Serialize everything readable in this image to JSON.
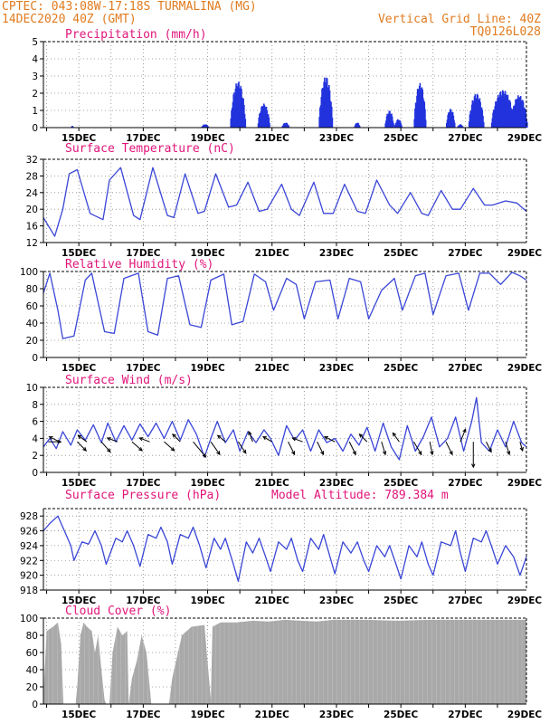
{
  "header": {
    "station": "CPTEC:  043:08W-17:18S  TURMALINA (MG)",
    "run": "14DEC2020 40Z (GMT)",
    "grid_note": "Vertical Grid Line: 40Z",
    "code": "TQ0126L028"
  },
  "colors": {
    "line": "#3a46d6",
    "bar": "#2233dd",
    "cloud": "#a9a9a9",
    "title": "#e0157a",
    "header": "#e07b1f"
  },
  "x_labels": [
    "15DEC",
    "17DEC",
    "19DEC",
    "21DEC",
    "23DEC",
    "25DEC",
    "27DEC",
    "29DEC"
  ],
  "chart_data": [
    {
      "type": "bar",
      "title": "Precipitation (mm/h)",
      "ylim": [
        0,
        5
      ],
      "yticks": [
        0,
        1,
        2,
        3,
        4,
        5
      ],
      "x_range_days": [
        14.0,
        29.0
      ],
      "events": [
        {
          "start": 14.85,
          "end": 14.9,
          "peak": 0.1
        },
        {
          "start": 18.9,
          "end": 19.1,
          "peak": 0.2
        },
        {
          "start": 19.8,
          "end": 20.25,
          "peak": 2.7
        },
        {
          "start": 20.65,
          "end": 21.0,
          "peak": 1.4
        },
        {
          "start": 21.4,
          "end": 21.6,
          "peak": 0.3
        },
        {
          "start": 22.55,
          "end": 22.95,
          "peak": 3.0
        },
        {
          "start": 23.65,
          "end": 23.8,
          "peak": 0.3
        },
        {
          "start": 24.6,
          "end": 24.85,
          "peak": 1.0
        },
        {
          "start": 24.9,
          "end": 25.1,
          "peak": 0.5
        },
        {
          "start": 25.5,
          "end": 25.85,
          "peak": 2.6
        },
        {
          "start": 26.5,
          "end": 26.75,
          "peak": 1.1
        },
        {
          "start": 26.85,
          "end": 27.0,
          "peak": 0.2
        },
        {
          "start": 27.2,
          "end": 27.65,
          "peak": 2.0
        },
        {
          "start": 27.9,
          "end": 28.6,
          "peak": 2.2
        },
        {
          "start": 28.5,
          "end": 29.0,
          "peak": 1.9
        }
      ]
    },
    {
      "type": "line",
      "title": "Surface Temperature (nC)",
      "ylim": [
        12,
        32
      ],
      "yticks": [
        12,
        16,
        20,
        24,
        28,
        32
      ],
      "x": [
        14.0,
        14.35,
        14.6,
        14.8,
        15.05,
        15.45,
        15.85,
        16.05,
        16.4,
        16.8,
        17.0,
        17.4,
        17.85,
        18.05,
        18.4,
        18.8,
        19.0,
        19.35,
        19.75,
        20.0,
        20.35,
        20.7,
        20.95,
        21.4,
        21.7,
        21.95,
        22.4,
        22.7,
        23.0,
        23.35,
        23.75,
        24.0,
        24.35,
        24.75,
        25.0,
        25.4,
        25.75,
        25.95,
        26.35,
        26.7,
        26.95,
        27.35,
        27.7,
        27.95,
        28.35,
        28.7,
        29.0
      ],
      "y": [
        18.0,
        13.5,
        20.0,
        28.5,
        29.5,
        19.0,
        17.5,
        27.0,
        30.0,
        18.5,
        17.5,
        30.0,
        18.5,
        18.0,
        28.5,
        19.0,
        19.5,
        28.5,
        20.5,
        21.0,
        26.5,
        19.5,
        20.0,
        26.0,
        20.0,
        18.5,
        26.5,
        19.0,
        19.0,
        26.0,
        19.5,
        19.0,
        27.0,
        21.0,
        19.0,
        24.0,
        19.0,
        18.5,
        24.5,
        20.0,
        20.0,
        25.0,
        21.0,
        21.0,
        22.0,
        21.5,
        19.5
      ]
    },
    {
      "type": "line",
      "title": "Relative Humidity (%)",
      "ylim": [
        0,
        100
      ],
      "yticks": [
        0,
        20,
        40,
        60,
        80,
        100
      ],
      "x": [
        14.0,
        14.2,
        14.45,
        14.6,
        14.95,
        15.3,
        15.5,
        15.9,
        16.2,
        16.5,
        16.95,
        17.25,
        17.55,
        17.85,
        18.2,
        18.55,
        18.9,
        19.2,
        19.6,
        19.85,
        20.2,
        20.55,
        20.9,
        21.15,
        21.55,
        21.85,
        22.1,
        22.45,
        22.9,
        23.15,
        23.5,
        23.85,
        24.1,
        24.5,
        24.9,
        25.15,
        25.55,
        25.85,
        26.1,
        26.5,
        26.9,
        27.2,
        27.55,
        27.85,
        28.2,
        28.55,
        28.8,
        29.0
      ],
      "y": [
        75.0,
        98.0,
        55.0,
        22.0,
        25.0,
        90.0,
        98.0,
        30.0,
        28.0,
        92.0,
        98.0,
        30.0,
        26.0,
        92.0,
        95.0,
        38.0,
        35.0,
        90.0,
        97.0,
        38.0,
        42.0,
        97.0,
        88.0,
        55.0,
        92.0,
        85.0,
        45.0,
        88.0,
        90.0,
        45.0,
        92.0,
        88.0,
        45.0,
        78.0,
        92.0,
        55.0,
        95.0,
        98.0,
        50.0,
        95.0,
        98.0,
        55.0,
        98.0,
        98.0,
        85.0,
        99.0,
        95.0,
        90.0
      ]
    },
    {
      "type": "line",
      "title": "Surface Wind (m/s)",
      "ylim": [
        0,
        10
      ],
      "yticks": [
        0,
        2,
        4,
        6,
        8,
        10
      ],
      "x": [
        14.0,
        14.2,
        14.4,
        14.6,
        14.85,
        15.05,
        15.3,
        15.55,
        15.8,
        16.0,
        16.25,
        16.5,
        16.75,
        17.0,
        17.25,
        17.5,
        17.75,
        18.0,
        18.25,
        18.5,
        18.75,
        19.0,
        19.2,
        19.4,
        19.65,
        19.9,
        20.1,
        20.35,
        20.6,
        20.85,
        21.05,
        21.3,
        21.55,
        21.8,
        22.05,
        22.3,
        22.55,
        22.8,
        23.05,
        23.3,
        23.55,
        23.8,
        24.05,
        24.3,
        24.55,
        24.8,
        25.05,
        25.3,
        25.55,
        25.8,
        26.05,
        26.3,
        26.55,
        26.8,
        27.05,
        27.3,
        27.45,
        27.6,
        27.85,
        28.1,
        28.35,
        28.6,
        28.85,
        29.0
      ],
      "y": [
        3.0,
        4.0,
        2.8,
        4.8,
        3.2,
        5.0,
        3.8,
        5.6,
        3.5,
        5.8,
        3.6,
        5.5,
        3.8,
        5.7,
        4.2,
        5.8,
        4.0,
        6.0,
        3.8,
        6.2,
        4.5,
        1.8,
        4.0,
        6.0,
        3.5,
        5.0,
        2.5,
        4.8,
        3.5,
        5.0,
        4.0,
        2.0,
        5.5,
        3.8,
        5.0,
        2.5,
        5.0,
        3.5,
        4.0,
        2.5,
        4.5,
        3.2,
        5.3,
        2.5,
        5.8,
        3.0,
        1.5,
        5.5,
        2.5,
        4.2,
        6.5,
        3.0,
        4.0,
        6.5,
        2.5,
        6.0,
        8.8,
        3.5,
        2.5,
        5.0,
        3.0,
        6.0,
        3.5,
        3.0
      ],
      "vectors": [
        {
          "day": 14.15,
          "u": 1.0,
          "v": 0.0
        },
        {
          "day": 14.5,
          "u": -0.8,
          "v": 0.4
        },
        {
          "day": 15.05,
          "u": 0.7,
          "v": -0.7
        },
        {
          "day": 15.35,
          "u": -0.7,
          "v": 0.5
        },
        {
          "day": 15.8,
          "u": 0.7,
          "v": -0.8
        },
        {
          "day": 16.3,
          "u": -0.8,
          "v": 0.3
        },
        {
          "day": 16.75,
          "u": 0.8,
          "v": -0.7
        },
        {
          "day": 17.3,
          "u": -0.8,
          "v": 0.3
        },
        {
          "day": 17.75,
          "u": 0.8,
          "v": -0.7
        },
        {
          "day": 18.25,
          "u": -0.6,
          "v": 0.6
        },
        {
          "day": 18.65,
          "u": 1.0,
          "v": -1.2
        },
        {
          "day": 19.2,
          "u": 0.7,
          "v": -1.0
        },
        {
          "day": 19.65,
          "u": -0.6,
          "v": 0.5
        },
        {
          "day": 20.05,
          "u": 0.6,
          "v": -0.9
        },
        {
          "day": 20.5,
          "u": -0.3,
          "v": 0.8
        },
        {
          "day": 21.1,
          "u": -0.7,
          "v": 0.4
        },
        {
          "day": 21.6,
          "u": 0.5,
          "v": -1.0
        },
        {
          "day": 22.05,
          "u": -0.8,
          "v": 0.3
        },
        {
          "day": 22.5,
          "u": 0.5,
          "v": -1.0
        },
        {
          "day": 23.05,
          "u": -0.8,
          "v": 0.4
        },
        {
          "day": 23.5,
          "u": 0.5,
          "v": -1.0
        },
        {
          "day": 24.05,
          "u": -0.6,
          "v": 0.6
        },
        {
          "day": 24.5,
          "u": 0.3,
          "v": -1.0
        },
        {
          "day": 25.05,
          "u": -0.5,
          "v": 0.7
        },
        {
          "day": 25.5,
          "u": 0.6,
          "v": -1.0
        },
        {
          "day": 26.0,
          "u": 0.2,
          "v": -1.0
        },
        {
          "day": 26.5,
          "u": 0.5,
          "v": -1.0
        },
        {
          "day": 26.95,
          "u": 0.4,
          "v": 1.0
        },
        {
          "day": 27.35,
          "u": 0.0,
          "v": -2.0
        },
        {
          "day": 27.75,
          "u": 0.4,
          "v": -0.8
        },
        {
          "day": 28.35,
          "u": 0.3,
          "v": -1.0
        },
        {
          "day": 28.8,
          "u": 0.2,
          "v": -0.7
        }
      ]
    },
    {
      "type": "line",
      "title": "Surface Pressure (hPa)",
      "annotation": "Model Altitude: 789.384 m",
      "ylim": [
        918,
        929
      ],
      "yticks": [
        918,
        920,
        922,
        924,
        926,
        928
      ],
      "x": [
        14.0,
        14.2,
        14.45,
        14.6,
        14.85,
        14.95,
        15.2,
        15.4,
        15.6,
        15.8,
        15.95,
        16.25,
        16.45,
        16.6,
        16.8,
        17.0,
        17.25,
        17.5,
        17.65,
        17.85,
        18.0,
        18.25,
        18.5,
        18.65,
        18.85,
        19.05,
        19.3,
        19.5,
        19.65,
        19.9,
        20.05,
        20.3,
        20.5,
        20.7,
        20.9,
        21.05,
        21.3,
        21.55,
        21.7,
        21.9,
        22.05,
        22.3,
        22.55,
        22.7,
        22.9,
        23.05,
        23.3,
        23.55,
        23.75,
        23.95,
        24.1,
        24.35,
        24.6,
        24.75,
        24.95,
        25.1,
        25.35,
        25.6,
        25.75,
        25.95,
        26.1,
        26.35,
        26.65,
        26.8,
        26.95,
        27.1,
        27.35,
        27.6,
        27.75,
        27.95,
        28.1,
        28.35,
        28.6,
        28.8,
        29.0
      ],
      "y": [
        926.0,
        927.0,
        928.0,
        926.5,
        924.0,
        922.0,
        924.5,
        924.2,
        926.0,
        924.0,
        921.5,
        925.0,
        924.5,
        926.0,
        924.0,
        921.2,
        925.5,
        925.0,
        926.5,
        924.5,
        921.5,
        925.5,
        925.0,
        926.5,
        924.0,
        921.0,
        925.0,
        923.5,
        925.0,
        921.5,
        919.2,
        924.5,
        923.0,
        925.0,
        922.5,
        920.5,
        924.5,
        923.5,
        925.0,
        922.0,
        920.5,
        925.0,
        923.5,
        925.5,
        922.5,
        920.2,
        924.5,
        923.0,
        924.5,
        922.0,
        920.5,
        924.0,
        922.5,
        924.0,
        921.5,
        919.5,
        924.0,
        922.5,
        924.5,
        921.5,
        920.0,
        924.5,
        924.0,
        926.0,
        923.0,
        920.5,
        925.0,
        924.5,
        926.0,
        923.5,
        921.5,
        924.0,
        922.5,
        920.0,
        922.5
      ]
    },
    {
      "type": "area",
      "title": "Cloud Cover (%)",
      "ylim": [
        0,
        100
      ],
      "yticks": [
        0,
        20,
        40,
        60,
        80,
        100
      ],
      "x": [
        14.0,
        14.1,
        14.3,
        14.45,
        14.55,
        14.62,
        14.7,
        14.85,
        15.0,
        15.05,
        15.15,
        15.25,
        15.35,
        15.5,
        15.6,
        15.7,
        15.8,
        15.9,
        15.95,
        16.05,
        16.15,
        16.3,
        16.45,
        16.6,
        16.65,
        16.75,
        16.9,
        17.05,
        17.2,
        17.3,
        17.35,
        17.45,
        17.6,
        17.75,
        17.9,
        18.0,
        18.3,
        18.6,
        19.0,
        19.2,
        19.25,
        19.5,
        20.0,
        20.5,
        21.0,
        21.5,
        22.0,
        22.5,
        23.0,
        24.0,
        25.0,
        26.0,
        27.0,
        28.0,
        29.0
      ],
      "y": [
        10.0,
        85.0,
        90.0,
        95.0,
        70.0,
        0.0,
        0.0,
        0.0,
        0.0,
        20.0,
        80.0,
        95.0,
        90.0,
        85.0,
        60.0,
        80.0,
        40.0,
        5.0,
        0.0,
        0.0,
        60.0,
        90.0,
        80.0,
        85.0,
        0.0,
        30.0,
        50.0,
        80.0,
        60.0,
        20.0,
        0.0,
        0.0,
        0.0,
        0.0,
        0.0,
        30.0,
        80.0,
        90.0,
        92.0,
        5.0,
        90.0,
        95.0,
        95.0,
        97.0,
        96.0,
        98.0,
        97.0,
        96.0,
        98.0,
        98.0,
        97.0,
        98.0,
        98.0,
        98.0,
        98.0
      ]
    }
  ]
}
